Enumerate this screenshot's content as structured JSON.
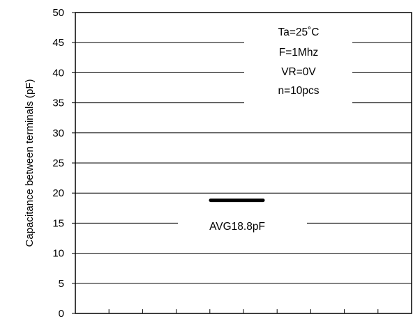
{
  "chart_data": {
    "type": "scatter",
    "title": "",
    "xlabel": "",
    "ylabel": "Capacitance between terminals  (pF)",
    "ylim": [
      0,
      50
    ],
    "y_ticks": [
      0,
      5,
      10,
      15,
      20,
      25,
      30,
      35,
      40,
      45,
      50
    ],
    "y_tick_labels": [
      "0",
      "5",
      "10",
      "15",
      "20",
      "25",
      "30",
      "35",
      "40",
      "45",
      "50"
    ],
    "grid": true,
    "x_minor_ticks": 9,
    "average": {
      "value": 18.8,
      "label": "AVG18.8pF"
    },
    "conditions": [
      "Ta=25˚C",
      "F=1Mhz",
      "VR=0V",
      "n=10pcs"
    ]
  }
}
